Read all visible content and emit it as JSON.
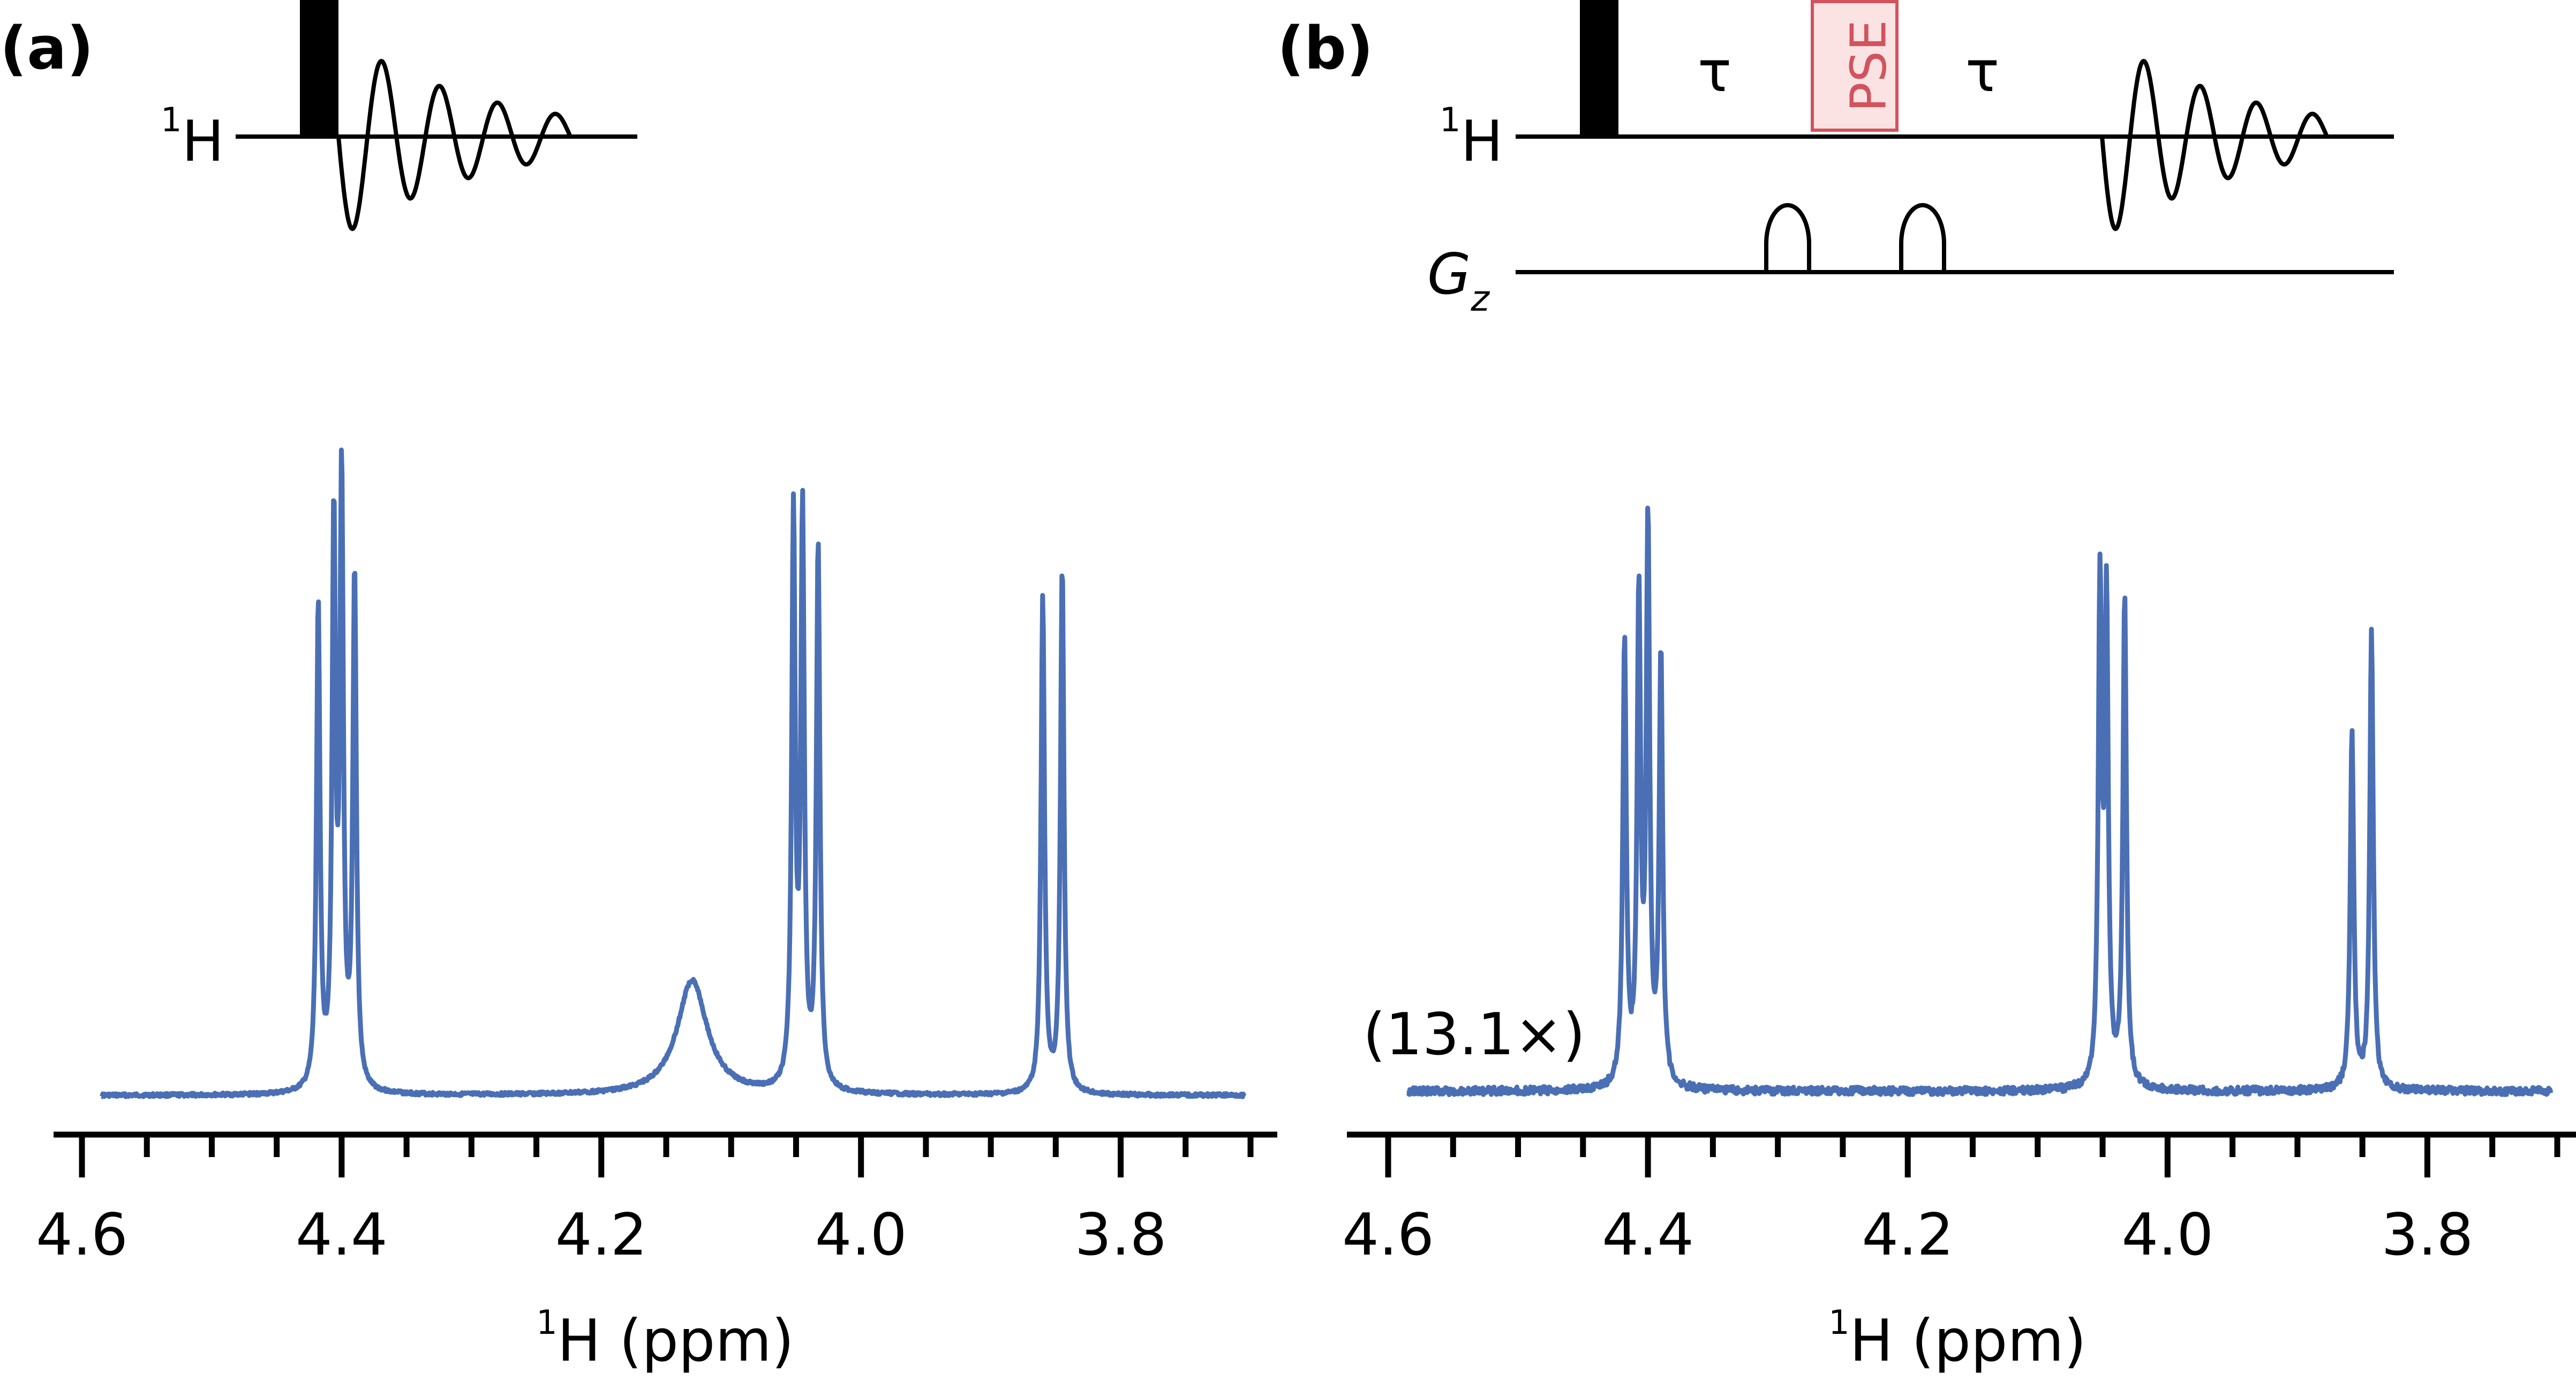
{
  "colors": {
    "spectrum": "#4a6fb5",
    "pse_stroke": "#d2535c",
    "pse_fill": "#fbe3e4",
    "ink": "#000000"
  },
  "panels": [
    {
      "label": "(a)",
      "sequence": {
        "channel_label": "H",
        "channel_sup": "1"
      },
      "scale_annotation": ""
    },
    {
      "label": "(b)",
      "sequence": {
        "channel_label": "H",
        "channel_sup": "1",
        "gradient_label": "G",
        "gradient_sub": "z",
        "delay_label": "τ",
        "element_label": "PSE"
      },
      "scale_annotation": "(13.1×)"
    }
  ],
  "chart_data": [
    {
      "type": "line",
      "panel": "a",
      "xlabel_sup": "1",
      "xlabel": "H (ppm)",
      "xlim": [
        4.6,
        3.7
      ],
      "xticks": [
        "4.6",
        "4.4",
        "4.2",
        "4.0",
        "3.8"
      ],
      "xtick_values": [
        4.6,
        4.4,
        4.2,
        4.0,
        3.8
      ],
      "minor_tick_step": 0.05,
      "peaks": [
        {
          "ppm": 4.418,
          "height": 0.81
        },
        {
          "ppm": 4.406,
          "height": 0.93
        },
        {
          "ppm": 4.4,
          "height": 1.0
        },
        {
          "ppm": 4.39,
          "height": 0.86
        },
        {
          "ppm": 4.13,
          "height": 0.15,
          "broad": true
        },
        {
          "ppm": 4.052,
          "height": 0.95
        },
        {
          "ppm": 4.045,
          "height": 0.95
        },
        {
          "ppm": 4.033,
          "height": 0.91
        },
        {
          "ppm": 3.86,
          "height": 0.83
        },
        {
          "ppm": 3.845,
          "height": 0.88
        }
      ]
    },
    {
      "type": "line",
      "panel": "b",
      "xlabel_sup": "1",
      "xlabel": "H (ppm)",
      "xlim": [
        4.6,
        3.7
      ],
      "xticks": [
        "4.6",
        "4.4",
        "4.2",
        "4.0",
        "3.8"
      ],
      "xtick_values": [
        4.6,
        4.4,
        4.2,
        4.0,
        3.8
      ],
      "minor_tick_step": 0.05,
      "peaks": [
        {
          "ppm": 4.418,
          "height": 0.8
        },
        {
          "ppm": 4.407,
          "height": 0.87
        },
        {
          "ppm": 4.4,
          "height": 1.0
        },
        {
          "ppm": 4.39,
          "height": 0.78
        },
        {
          "ppm": 4.052,
          "height": 0.89
        },
        {
          "ppm": 4.047,
          "height": 0.86
        },
        {
          "ppm": 4.033,
          "height": 0.89
        },
        {
          "ppm": 3.858,
          "height": 0.65
        },
        {
          "ppm": 3.843,
          "height": 0.83
        }
      ]
    }
  ]
}
